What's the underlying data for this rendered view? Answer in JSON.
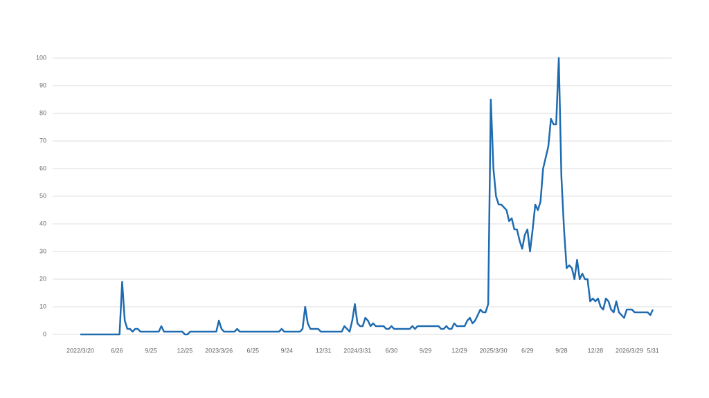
{
  "chart_data": {
    "type": "line",
    "categories": [
      "2022/3/20",
      null,
      null,
      null,
      null,
      null,
      null,
      null,
      null,
      null,
      null,
      null,
      null,
      null,
      "6/26",
      null,
      null,
      null,
      null,
      null,
      null,
      null,
      null,
      null,
      null,
      null,
      null,
      "9/25",
      null,
      null,
      null,
      null,
      null,
      null,
      null,
      null,
      null,
      null,
      null,
      null,
      "12/25",
      null,
      null,
      null,
      null,
      null,
      null,
      null,
      null,
      null,
      null,
      null,
      null,
      "2023/3/26",
      null,
      null,
      null,
      null,
      null,
      null,
      null,
      null,
      null,
      null,
      null,
      null,
      "6/25",
      null,
      null,
      null,
      null,
      null,
      null,
      null,
      null,
      null,
      null,
      null,
      null,
      "9/24",
      null,
      null,
      null,
      null,
      null,
      null,
      null,
      null,
      null,
      null,
      null,
      null,
      null,
      "12/31",
      null,
      null,
      null,
      null,
      null,
      null,
      null,
      null,
      null,
      null,
      null,
      null,
      "2024/3/31",
      null,
      null,
      null,
      null,
      null,
      null,
      null,
      null,
      null,
      null,
      null,
      null,
      "6/30",
      null,
      null,
      null,
      null,
      null,
      null,
      null,
      null,
      null,
      null,
      null,
      null,
      "9/29",
      null,
      null,
      null,
      null,
      null,
      null,
      null,
      null,
      null,
      null,
      null,
      null,
      "12/29",
      null,
      null,
      null,
      null,
      null,
      null,
      null,
      null,
      null,
      null,
      null,
      null,
      "2025/3/30",
      null,
      null,
      null,
      null,
      null,
      null,
      null,
      null,
      null,
      null,
      null,
      null,
      "6/29",
      null,
      null,
      null,
      null,
      null,
      null,
      null,
      null,
      null,
      null,
      null,
      null,
      "9/28",
      null,
      null,
      null,
      null,
      null,
      null,
      null,
      null,
      null,
      null,
      null,
      null,
      "12/28",
      null,
      null,
      null,
      null,
      null,
      null,
      null,
      null,
      null,
      null,
      null,
      null,
      "2026/3/29",
      null,
      null,
      null,
      null,
      null,
      null,
      null,
      null,
      "5/31"
    ],
    "series": [
      {
        "color": "#1f6bb0",
        "values": [
          0,
          0,
          0,
          0,
          0,
          0,
          0,
          0,
          0,
          0,
          0,
          0,
          0,
          0,
          0,
          0,
          19,
          5,
          2,
          2,
          1,
          2,
          2,
          1,
          1,
          1,
          1,
          1,
          1,
          1,
          1,
          3,
          1,
          1,
          1,
          1,
          1,
          1,
          1,
          1,
          0,
          0,
          1,
          1,
          1,
          1,
          1,
          1,
          1,
          1,
          1,
          1,
          1,
          5,
          2,
          1,
          1,
          1,
          1,
          1,
          2,
          1,
          1,
          1,
          1,
          1,
          1,
          1,
          1,
          1,
          1,
          1,
          1,
          1,
          1,
          1,
          1,
          2,
          1,
          1,
          1,
          1,
          1,
          1,
          1,
          2,
          10,
          4,
          2,
          2,
          2,
          2,
          1,
          1,
          1,
          1,
          1,
          1,
          1,
          1,
          1,
          3,
          2,
          1,
          5,
          11,
          4,
          3,
          3,
          6,
          5,
          3,
          4,
          3,
          3,
          3,
          3,
          2,
          2,
          3,
          2,
          2,
          2,
          2,
          2,
          2,
          2,
          3,
          2,
          3,
          3,
          3,
          3,
          3,
          3,
          3,
          3,
          3,
          2,
          2,
          3,
          2,
          2,
          4,
          3,
          3,
          3,
          3,
          5,
          6,
          4,
          5,
          7,
          9,
          8,
          8,
          11,
          85,
          60,
          50,
          47,
          47,
          46,
          45,
          41,
          42,
          38,
          38,
          34,
          31,
          36,
          38,
          30,
          38,
          47,
          45,
          48,
          60,
          64,
          68,
          78,
          76,
          76,
          100,
          57,
          38,
          24,
          25,
          24,
          20,
          27,
          20,
          22,
          20,
          20,
          12,
          13,
          12,
          13,
          10,
          9,
          13,
          12,
          9,
          8,
          12,
          8,
          7,
          6,
          9,
          9,
          9,
          8,
          8,
          8,
          8,
          8,
          8,
          7,
          9
        ]
      }
    ],
    "ylim": [
      0,
      100
    ],
    "yticks": [
      0,
      10,
      20,
      30,
      40,
      50,
      60,
      70,
      80,
      90,
      100
    ],
    "grid": true
  }
}
